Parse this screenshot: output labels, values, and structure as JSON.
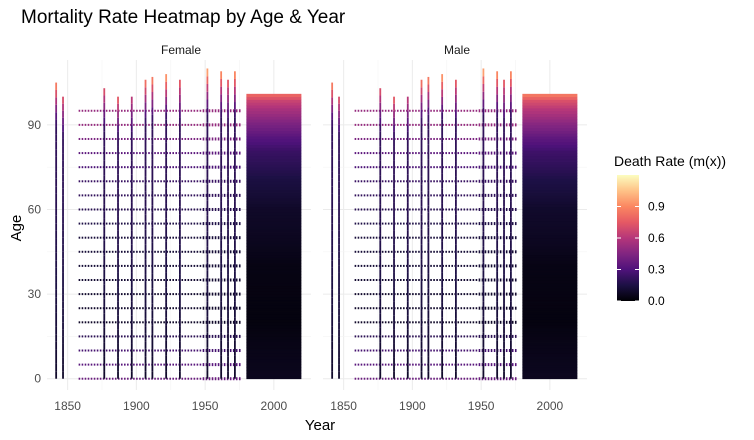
{
  "chart_data": {
    "type": "heatmap",
    "title": "Mortality Rate Heatmap by Age & Year",
    "xlabel": "Year",
    "ylabel": "Age",
    "facets": [
      "Female",
      "Male"
    ],
    "xlim": [
      1835,
      2027
    ],
    "ylim": [
      -4,
      113
    ],
    "x_ticks": [
      1850,
      1900,
      1950,
      2000
    ],
    "y_ticks": [
      0,
      30,
      60,
      90
    ],
    "grid": true,
    "legend": {
      "title": "Death Rate (m(x))",
      "position": "right",
      "range": [
        0,
        1.2
      ],
      "ticks": [
        0.0,
        0.3,
        0.6,
        0.9
      ],
      "tick_labels": [
        "0.0",
        "0.3",
        "0.6",
        "0.9"
      ],
      "palette": [
        "#000004",
        "#1c1044",
        "#4f127b",
        "#812581",
        "#b5367a",
        "#e55964",
        "#fb8761",
        "#fec287",
        "#fcfdbf"
      ]
    },
    "single_year_columns": [
      {
        "year": 1841,
        "max_age": 105,
        "top_rate": 0.65
      },
      {
        "year": 1846,
        "max_age": 100,
        "top_rate": 0.45
      },
      {
        "year": 1876,
        "max_age": 103,
        "top_rate": 0.45
      },
      {
        "year": 1886,
        "max_age": 100,
        "top_rate": 0.5
      },
      {
        "year": 1896,
        "max_age": 100,
        "top_rate": 0.35
      },
      {
        "year": 1906,
        "max_age": 106,
        "top_rate": 0.6
      },
      {
        "year": 1911,
        "max_age": 107,
        "top_rate": 0.65
      },
      {
        "year": 1921,
        "max_age": 108,
        "top_rate": 0.75
      },
      {
        "year": 1931,
        "max_age": 106,
        "top_rate": 0.5
      },
      {
        "year": 1951,
        "max_age": 110,
        "top_rate": 0.8
      },
      {
        "year": 1961,
        "max_age": 109,
        "top_rate": 0.7
      },
      {
        "year": 1966,
        "max_age": 106,
        "top_rate": 0.5
      },
      {
        "year": 1971,
        "max_age": 109,
        "top_rate": 0.7
      }
    ],
    "sparse_columns": {
      "start_year": 1858,
      "end_year": 1975,
      "step_years": 2.2,
      "dense_from": 1948,
      "dense_to": 1975,
      "age_spacing": 5,
      "max_age": 95,
      "rates_by_age": [
        {
          "age": 0,
          "rate": 0.15
        },
        {
          "age": 20,
          "rate": 0.01
        },
        {
          "age": 50,
          "rate": 0.02
        },
        {
          "age": 70,
          "rate": 0.06
        },
        {
          "age": 80,
          "rate": 0.12
        },
        {
          "age": 90,
          "rate": 0.25
        }
      ]
    },
    "continuous_block": {
      "start_year": 1980,
      "end_year": 2020,
      "max_age": 100,
      "rates_by_age": [
        {
          "age": 0,
          "rate": 0.005
        },
        {
          "age": 20,
          "rate": 0.001
        },
        {
          "age": 40,
          "rate": 0.002
        },
        {
          "age": 60,
          "rate": 0.01
        },
        {
          "age": 70,
          "rate": 0.025
        },
        {
          "age": 80,
          "rate": 0.06
        },
        {
          "age": 85,
          "rate": 0.11
        },
        {
          "age": 90,
          "rate": 0.19
        },
        {
          "age": 95,
          "rate": 0.3
        },
        {
          "age": 98,
          "rate": 0.4
        },
        {
          "age": 100,
          "rate": 0.55
        }
      ]
    }
  }
}
